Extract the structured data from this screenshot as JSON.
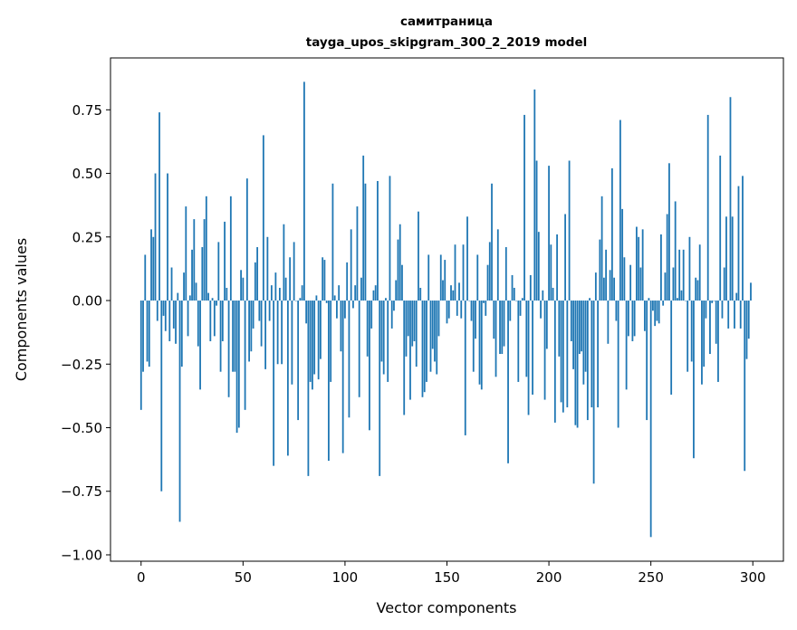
{
  "chart_data": {
    "type": "bar",
    "title": "самитраница",
    "subtitle": "tayga_upos_skipgram_300_2_2019 model",
    "xlabel": "Vector components",
    "ylabel": "Components values",
    "xlim": [
      -15,
      315
    ],
    "ylim": [
      -1.025,
      0.954
    ],
    "xticks": [
      0,
      50,
      100,
      150,
      200,
      250,
      300
    ],
    "xtick_labels": [
      "0",
      "50",
      "100",
      "150",
      "200",
      "250",
      "300"
    ],
    "yticks": [
      -1.0,
      -0.75,
      -0.5,
      -0.25,
      0.0,
      0.25,
      0.5,
      0.75
    ],
    "ytick_labels": [
      "−1.00",
      "−0.75",
      "−0.50",
      "−0.25",
      "0.00",
      "0.25",
      "0.50",
      "0.75"
    ],
    "grid": false,
    "bar_color": "#1f77b4",
    "values": [
      -0.43,
      -0.28,
      0.18,
      -0.24,
      -0.26,
      0.28,
      0.25,
      0.5,
      -0.08,
      0.74,
      -0.75,
      -0.06,
      -0.12,
      0.5,
      -0.16,
      0.13,
      -0.11,
      -0.17,
      0.03,
      -0.87,
      -0.26,
      0.11,
      0.37,
      -0.14,
      0.02,
      0.2,
      0.32,
      0.07,
      -0.18,
      -0.35,
      0.21,
      0.32,
      0.41,
      0.03,
      -0.16,
      0.01,
      -0.14,
      -0.02,
      0.23,
      -0.28,
      -0.16,
      0.31,
      0.05,
      -0.38,
      0.41,
      -0.28,
      -0.28,
      -0.52,
      -0.5,
      0.12,
      0.09,
      -0.43,
      0.48,
      -0.24,
      -0.2,
      -0.11,
      0.15,
      0.21,
      -0.08,
      -0.18,
      0.65,
      -0.27,
      0.25,
      -0.08,
      0.06,
      -0.65,
      0.11,
      -0.25,
      0.05,
      -0.25,
      0.3,
      0.09,
      -0.61,
      0.17,
      -0.33,
      0.23,
      0.0,
      -0.47,
      0.01,
      0.06,
      0.86,
      -0.09,
      -0.69,
      -0.32,
      -0.35,
      -0.29,
      0.02,
      -0.31,
      -0.23,
      0.17,
      0.16,
      -0.01,
      -0.63,
      -0.32,
      0.46,
      0.02,
      -0.07,
      0.06,
      -0.2,
      -0.6,
      -0.07,
      0.15,
      -0.46,
      0.28,
      -0.03,
      0.06,
      0.37,
      -0.38,
      0.09,
      0.57,
      0.46,
      -0.22,
      -0.51,
      -0.11,
      0.04,
      0.06,
      0.47,
      -0.69,
      -0.24,
      -0.29,
      0.01,
      -0.32,
      0.49,
      -0.11,
      -0.04,
      0.08,
      0.24,
      0.3,
      0.14,
      -0.45,
      -0.22,
      -0.14,
      -0.39,
      -0.18,
      -0.16,
      -0.26,
      0.35,
      0.05,
      -0.38,
      -0.36,
      -0.32,
      0.18,
      -0.28,
      -0.19,
      -0.24,
      -0.29,
      -0.14,
      0.18,
      0.08,
      0.16,
      -0.09,
      -0.07,
      0.06,
      0.04,
      0.22,
      -0.06,
      0.07,
      -0.07,
      0.22,
      -0.53,
      0.33,
      0.0,
      -0.08,
      -0.28,
      -0.15,
      0.18,
      -0.33,
      -0.35,
      -0.01,
      -0.06,
      0.14,
      0.23,
      0.46,
      -0.15,
      -0.3,
      0.28,
      -0.21,
      -0.21,
      -0.18,
      0.21,
      -0.64,
      -0.08,
      0.1,
      0.05,
      0.0,
      -0.32,
      -0.06,
      0.01,
      0.73,
      -0.3,
      -0.45,
      0.1,
      -0.37,
      0.83,
      0.55,
      0.27,
      -0.07,
      0.04,
      -0.39,
      -0.19,
      0.53,
      0.22,
      0.05,
      -0.48,
      0.26,
      -0.22,
      -0.4,
      -0.44,
      0.34,
      -0.42,
      0.55,
      -0.16,
      -0.27,
      -0.49,
      -0.5,
      -0.21,
      -0.2,
      -0.33,
      -0.28,
      -0.47,
      0.01,
      -0.42,
      -0.72,
      0.11,
      -0.42,
      0.24,
      0.41,
      0.09,
      0.2,
      -0.17,
      0.12,
      0.52,
      0.09,
      -0.08,
      -0.5,
      0.71,
      0.36,
      0.17,
      -0.35,
      -0.14,
      0.14,
      -0.16,
      -0.14,
      0.29,
      0.25,
      0.13,
      0.28,
      -0.12,
      -0.47,
      0.01,
      -0.93,
      -0.04,
      -0.1,
      -0.08,
      -0.09,
      0.26,
      -0.02,
      0.11,
      0.34,
      0.54,
      -0.37,
      0.13,
      0.39,
      0.01,
      0.2,
      0.04,
      0.2,
      0.0,
      -0.28,
      0.25,
      -0.24,
      -0.62,
      0.09,
      0.08,
      0.22,
      -0.33,
      -0.26,
      -0.07,
      0.73,
      -0.21,
      -0.01,
      0.0,
      -0.17,
      -0.32,
      0.57,
      -0.07,
      0.13,
      0.33,
      -0.11,
      0.8,
      0.33,
      -0.11,
      0.03,
      0.45,
      -0.11,
      0.49,
      -0.67,
      -0.23,
      -0.15,
      0.07
    ]
  }
}
